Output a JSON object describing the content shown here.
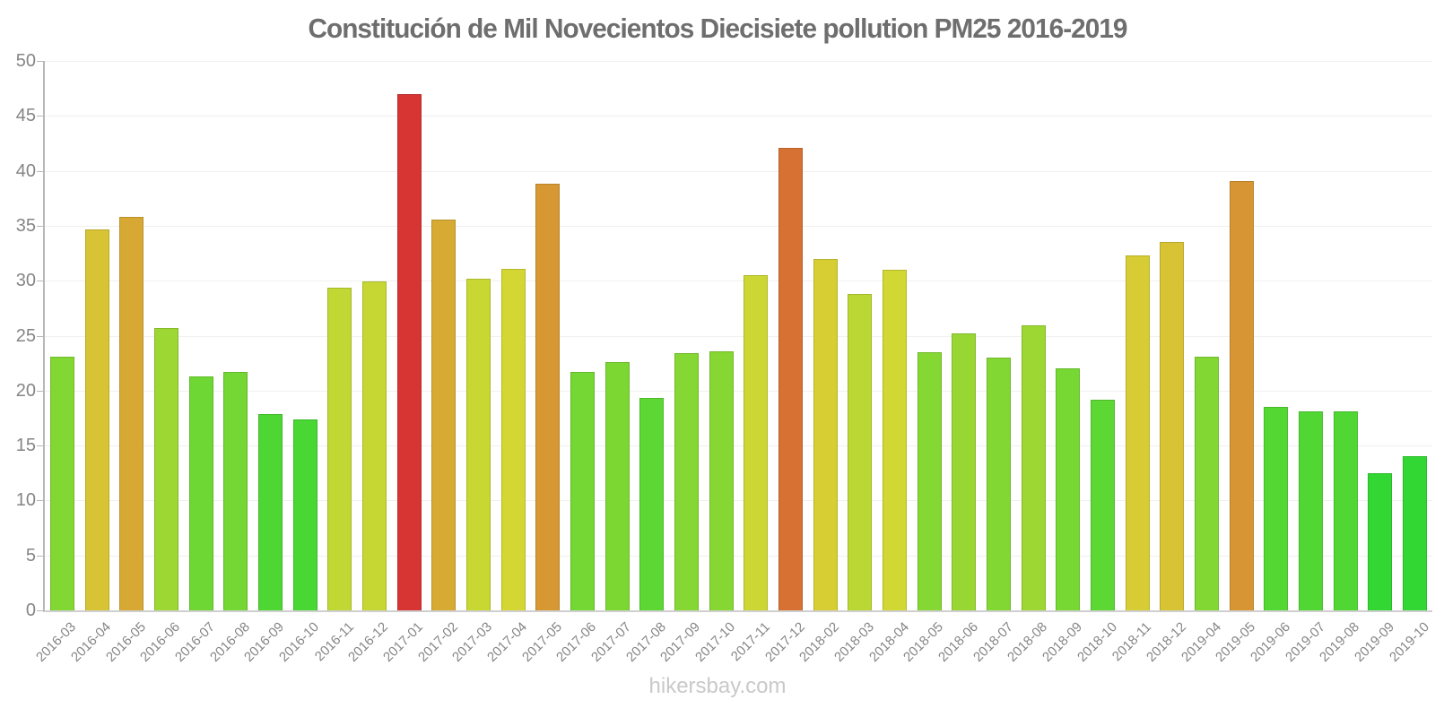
{
  "chart_data": {
    "type": "bar",
    "title": "Constitución de Mil Novecientos Diecisiete pollution PM25 2016-2019",
    "watermark": "hikersbay.com",
    "xlabel": "",
    "ylabel": "",
    "ylim": [
      0,
      50
    ],
    "ytick_step": 5,
    "yticks": [
      0,
      5,
      10,
      15,
      20,
      25,
      30,
      35,
      40,
      45,
      50
    ],
    "grid": true,
    "legend": false,
    "x_label_rotation_deg": -45,
    "categories": [
      "2016-03",
      "2016-04",
      "2016-05",
      "2016-06",
      "2016-07",
      "2016-08",
      "2016-09",
      "2016-10",
      "2016-11",
      "2016-12",
      "2017-01",
      "2017-02",
      "2017-03",
      "2017-04",
      "2017-05",
      "2017-06",
      "2017-07",
      "2017-08",
      "2017-09",
      "2017-10",
      "2017-11",
      "2017-12",
      "2018-02",
      "2018-03",
      "2018-04",
      "2018-05",
      "2018-06",
      "2018-07",
      "2018-08",
      "2018-09",
      "2018-10",
      "2018-11",
      "2018-12",
      "2019-04",
      "2019-05",
      "2019-06",
      "2019-07",
      "2019-08",
      "2019-09",
      "2019-10"
    ],
    "values": [
      23.1,
      34.7,
      35.8,
      25.7,
      21.3,
      21.7,
      17.9,
      17.4,
      29.4,
      29.9,
      47.0,
      35.6,
      30.2,
      31.1,
      38.8,
      21.7,
      22.6,
      19.3,
      23.4,
      23.6,
      30.5,
      42.1,
      32.0,
      28.8,
      31.0,
      23.5,
      25.2,
      23.0,
      25.9,
      22.0,
      19.2,
      32.3,
      33.5,
      23.1,
      39.1,
      18.5,
      18.1,
      18.1,
      12.5,
      14.0
    ],
    "colors": [
      "hsl(91,67%,52%)",
      "hsl(53,67%,52%)",
      "hsl(43,67%,52%)",
      "hsl(81,67%,52%)",
      "hsl(98,67%,52%)",
      "hsl(96,67%,52%)",
      "hsl(110,67%,52%)",
      "hsl(112,67%,52%)",
      "hsl(68,67%,52%)",
      "hsl(66,67%,52%)",
      "hsl(1,67%,52%)",
      "hsl(44,67%,52%)",
      "hsl(65,67%,52%)",
      "hsl(61,67%,52%)",
      "hsl(37,67%,52%)",
      "hsl(96,67%,52%)",
      "hsl(93,67%,52%)",
      "hsl(105,67%,52%)",
      "hsl(90,67%,52%)",
      "hsl(89,67%,52%)",
      "hsl(64,67%,52%)",
      "hsl(23,67%,52%)",
      "hsl(57,67%,52%)",
      "hsl(70,67%,52%)",
      "hsl(62,67%,52%)",
      "hsl(90,67%,52%)",
      "hsl(83,67%,52%)",
      "hsl(91,67%,52%)",
      "hsl(81,67%,52%)",
      "hsl(95,67%,52%)",
      "hsl(105,67%,52%)",
      "hsl(56,67%,52%)",
      "hsl(53,67%,52%)",
      "hsl(91,67%,52%)",
      "hsl(36,67%,52%)",
      "hsl(108,67%,52%)",
      "hsl(109,67%,52%)",
      "hsl(109,67%,52%)",
      "hsl(120,67%,52%)",
      "hsl(120,67%,52%)"
    ],
    "axis_color": "#b8b8b8",
    "gridline_color": "#f0f0f0",
    "title_color": "#6e6e6e",
    "label_color": "#858585",
    "watermark_color": "#c9c9c9"
  }
}
